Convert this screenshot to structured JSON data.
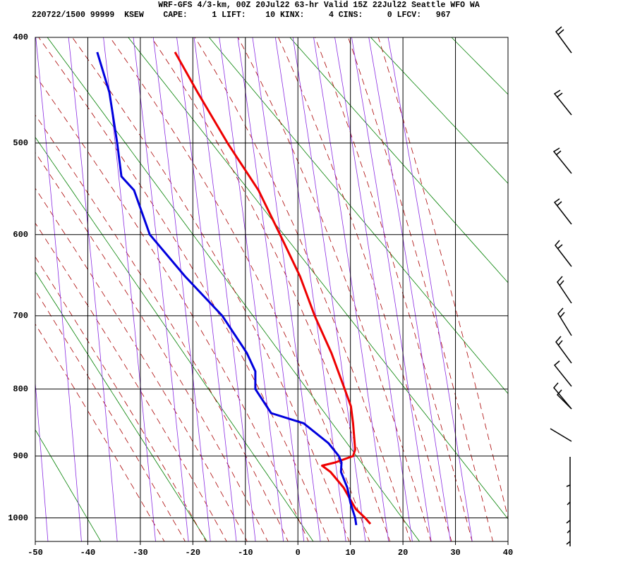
{
  "chart_data": {
    "type": "line",
    "title": "WRF-GFS 4/3-km, 00Z 20Jul22 63-hr Valid 15Z 22Jul22 Seattle WFO WA",
    "subtitle": "220722/1500 99999  KSEW    CAPE:     1 LIFT:    10 KINX:     4 CINS:     0 LFCV:   967",
    "xlim": [
      -50,
      40
    ],
    "xticks": [
      -50,
      -40,
      -30,
      -20,
      -10,
      0,
      10,
      20,
      30,
      40
    ],
    "ylim": [
      400,
      1040
    ],
    "yticks": [
      400,
      500,
      600,
      700,
      800,
      900,
      1000
    ],
    "y_inverted": true,
    "grid": true,
    "series": [
      {
        "color": "#ee0000",
        "x": [
          13.8,
          12.8,
          11.0,
          10.0,
          8.7,
          6.2,
          4.6,
          7.1,
          10.5,
          10.9,
          10.5,
          10.1,
          8.9,
          6.4,
          3.2,
          0.4,
          -3.4,
          -7.5,
          -13.4,
          -19.1,
          -23.4
        ],
        "values": [
          1010,
          1000,
          985,
          970,
          950,
          925,
          915,
          910,
          900,
          890,
          850,
          825,
          800,
          750,
          700,
          650,
          600,
          550,
          500,
          450,
          413
        ]
      },
      {
        "color": "#0000dd",
        "x": [
          11.1,
          10.9,
          10.0,
          9.4,
          8.2,
          8.3,
          7.8,
          5.8,
          1.1,
          -5.1,
          -8.1,
          -8.1,
          -9.7,
          -10.6,
          -14.4,
          -21.5,
          -28.2,
          -31.2,
          -33.6,
          -34.4,
          -35.9,
          -38.2
        ],
        "values": [
          1012,
          1000,
          975,
          950,
          925,
          910,
          900,
          880,
          850,
          835,
          800,
          775,
          750,
          740,
          700,
          650,
          600,
          550,
          535,
          500,
          450,
          413
        ]
      }
    ]
  }
}
